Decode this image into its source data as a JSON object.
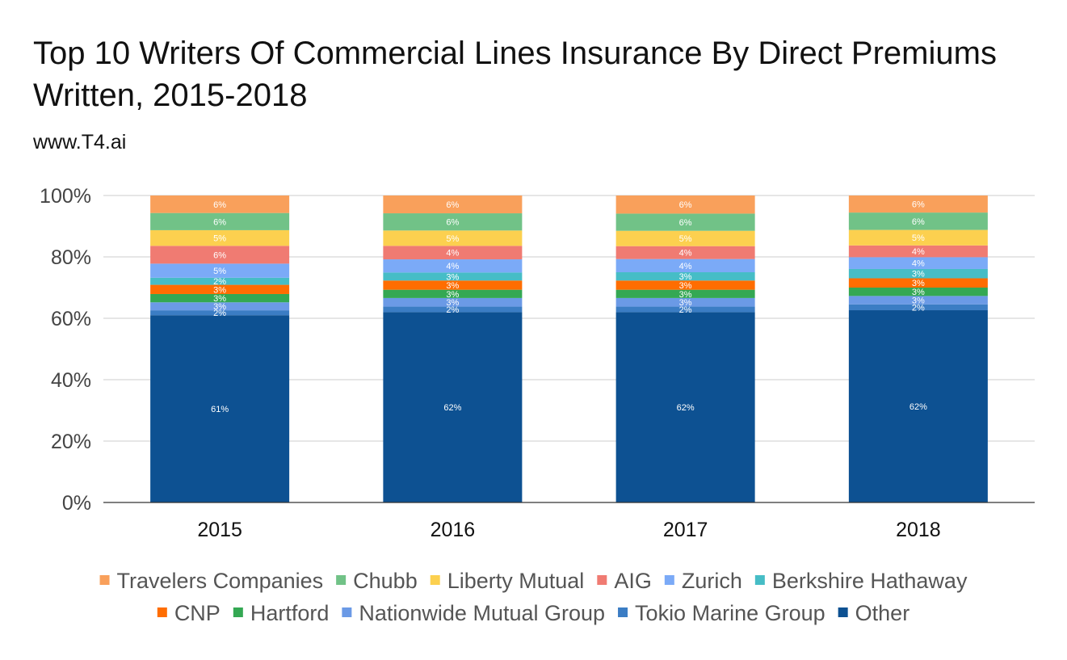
{
  "title": "Top 10 Writers Of Commercial Lines Insurance By Direct Premiums Written, 2015-2018",
  "subtitle": "www.T4.ai",
  "chart_data": {
    "type": "bar",
    "stacked": "percent",
    "categories": [
      "2015",
      "2016",
      "2017",
      "2018"
    ],
    "ylim": [
      0,
      100
    ],
    "yticks": [
      "0%",
      "20%",
      "40%",
      "60%",
      "80%",
      "100%"
    ],
    "grid": true,
    "legend_position": "bottom",
    "series": [
      {
        "name": "Other",
        "color": "#0d5192",
        "values": [
          61,
          62,
          62,
          62
        ],
        "labels": [
          "61%",
          "62%",
          "62%",
          "62%"
        ]
      },
      {
        "name": "Tokio Marine Group",
        "color": "#3b7dc4",
        "values": [
          1.6,
          1.8,
          1.8,
          1.9
        ],
        "labels": [
          "2%",
          "2%",
          "2%",
          "2%"
        ]
      },
      {
        "name": "Nationwide Mutual Group",
        "color": "#6b9ae6",
        "values": [
          2.6,
          2.8,
          2.8,
          2.7
        ],
        "labels": [
          "3%",
          "3%",
          "3%",
          "3%"
        ]
      },
      {
        "name": "Hartford",
        "color": "#34a853",
        "values": [
          2.7,
          2.7,
          2.7,
          2.7
        ],
        "labels": [
          "3%",
          "3%",
          "3%",
          "3%"
        ]
      },
      {
        "name": "CNP",
        "color": "#ff6d01",
        "values": [
          3.0,
          3.0,
          3.0,
          3.0
        ],
        "labels": [
          "3%",
          "3%",
          "3%",
          "3%"
        ]
      },
      {
        "name": "Berkshire Hathaway",
        "color": "#46bdc6",
        "values": [
          2.3,
          2.6,
          2.7,
          3.0
        ],
        "labels": [
          "2%",
          "3%",
          "3%",
          "3%"
        ]
      },
      {
        "name": "Zurich",
        "color": "#7baaf7",
        "values": [
          4.6,
          4.3,
          4.3,
          3.8
        ],
        "labels": [
          "5%",
          "4%",
          "4%",
          "4%"
        ]
      },
      {
        "name": "AIG",
        "color": "#f07b72",
        "values": [
          5.8,
          4.4,
          4.2,
          3.8
        ],
        "labels": [
          "6%",
          "4%",
          "4%",
          "4%"
        ]
      },
      {
        "name": "Liberty Mutual",
        "color": "#fcd04f",
        "values": [
          5.1,
          5.0,
          5.0,
          5.0
        ],
        "labels": [
          "5%",
          "5%",
          "5%",
          "5%"
        ]
      },
      {
        "name": "Chubb",
        "color": "#71c287",
        "values": [
          5.6,
          5.6,
          5.6,
          5.6
        ],
        "labels": [
          "6%",
          "6%",
          "6%",
          "6%"
        ]
      },
      {
        "name": "Travelers Companies",
        "color": "#f9a05b",
        "values": [
          5.7,
          5.8,
          5.9,
          5.5
        ],
        "labels": [
          "6%",
          "6%",
          "6%",
          "6%"
        ]
      }
    ],
    "legend_order": [
      "Travelers Companies",
      "Chubb",
      "Liberty Mutual",
      "AIG",
      "Zurich",
      "Berkshire Hathaway",
      "CNP",
      "Hartford",
      "Nationwide Mutual Group",
      "Tokio Marine Group",
      "Other"
    ]
  }
}
